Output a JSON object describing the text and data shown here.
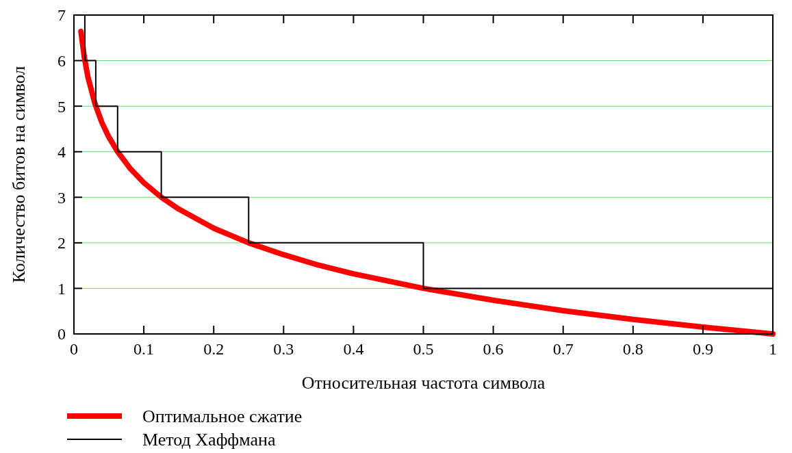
{
  "chart_data": {
    "type": "line",
    "xlabel": "Относительная частота символа",
    "ylabel": "Количество битов на символ",
    "xlim": [
      0,
      1
    ],
    "xticks": [
      0,
      0.1,
      0.2,
      0.3,
      0.4,
      0.5,
      0.6,
      0.7,
      0.8,
      0.9,
      1
    ],
    "ylim": [
      0,
      7
    ],
    "yticks": [
      0,
      1,
      2,
      3,
      4,
      5,
      6,
      7
    ],
    "grid": "y",
    "legend": "bottom left",
    "series": [
      {
        "name": "Оптимальное сжатие",
        "color": "#ff0000",
        "x": [
          0.01,
          0.015,
          0.02,
          0.03,
          0.04,
          0.05,
          0.0625,
          0.08,
          0.1,
          0.125,
          0.15,
          0.2,
          0.25,
          0.3,
          0.35,
          0.4,
          0.5,
          0.6,
          0.7,
          0.8,
          0.9,
          1
        ],
        "values": [
          6.64,
          6.06,
          5.64,
          5.06,
          4.64,
          4.32,
          4,
          3.64,
          3.32,
          3,
          2.74,
          2.32,
          2,
          1.74,
          1.51,
          1.32,
          1,
          0.74,
          0.51,
          0.32,
          0.15,
          0
        ]
      },
      {
        "name": "Метод Хаффмана",
        "type": "step",
        "color": "#000000",
        "x": [
          0.0156,
          0.0156,
          0.03125,
          0.0625,
          0.125,
          0.25,
          0.5,
          1
        ],
        "values": [
          7,
          6,
          5,
          4,
          3,
          2,
          1,
          1
        ]
      }
    ]
  }
}
